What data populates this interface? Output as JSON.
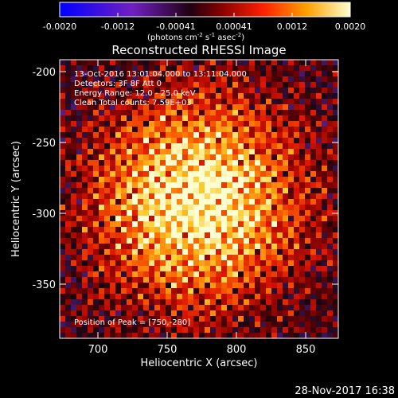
{
  "colorbar": {
    "ticks": [
      "-0.0020",
      "-0.0012",
      "-0.00041",
      "0.00041",
      "0.0012",
      "0.0020"
    ],
    "units_text": "(photons cm",
    "units_sup1": "-2",
    "units_mid": " s",
    "units_sup2": "-1",
    "units_mid2": " asec",
    "units_sup3": "-2",
    "units_close": ")"
  },
  "title": "Reconstructed RHESSI Image",
  "info_lines": [
    "13-Oct-2016 13:01:04.000 to 13:11:04.000",
    "Detectors: 3F 8F  Att 0",
    "Energy Range: 12.0 - 25.0 keV",
    "Clean     Total counts: 7.59E+03"
  ],
  "peak_text": "Position of Peak = [750,-280]",
  "xaxis": {
    "label": "Heliocentric X (arcsec)",
    "ticks": [
      "700",
      "750",
      "800",
      "850"
    ]
  },
  "yaxis": {
    "label": "Heliocentric Y (arcsec)",
    "ticks": [
      "-200",
      "-250",
      "-300",
      "-350"
    ]
  },
  "footer_timestamp": "28-Nov-2017 16:38",
  "image_content": {
    "description_colormap": "blue-purple-red-orange-yellow-white",
    "peak_x": 750,
    "peak_y": -280,
    "x_range": [
      675,
      865
    ],
    "y_range": [
      -385,
      -190
    ]
  }
}
